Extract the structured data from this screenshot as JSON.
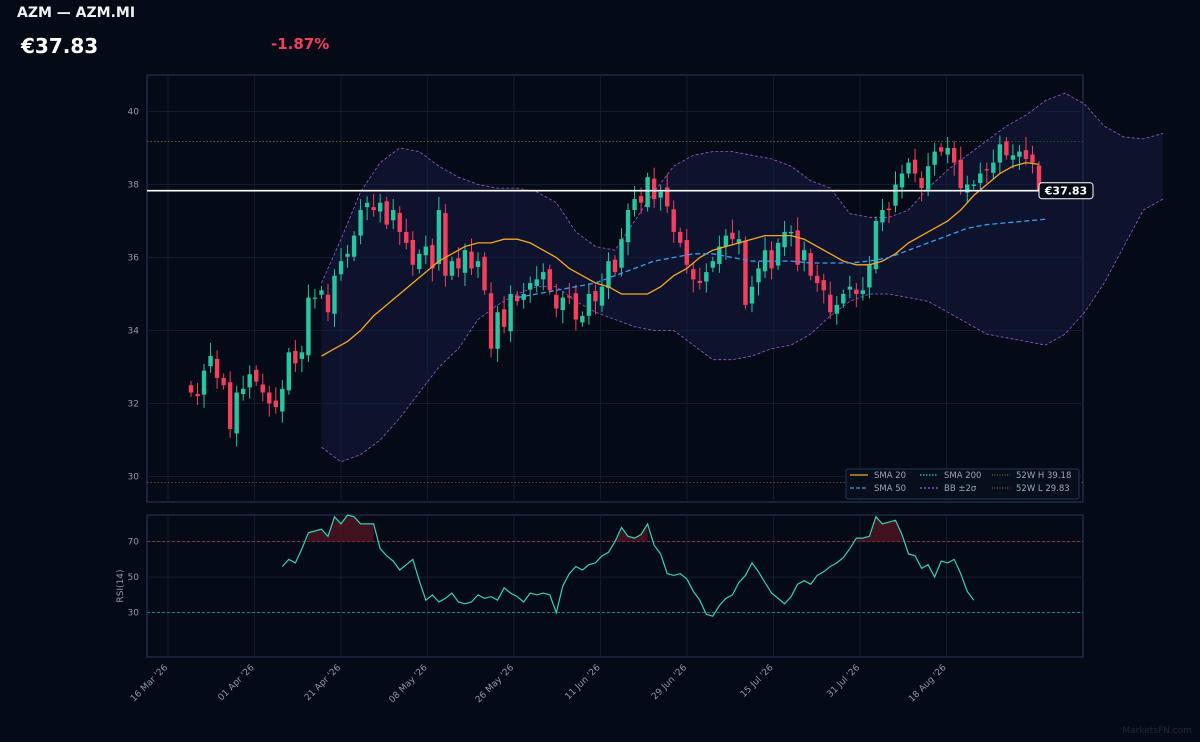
{
  "header": {
    "title": "AZM — AZM.MI",
    "price": "€37.83",
    "change": "-1.87%"
  },
  "watermark": "MarketsFN.com",
  "colors": {
    "background": "#050b16",
    "up": "#26c6a0",
    "down": "#f43f5e",
    "sma20": "#f5a623",
    "sma50": "#3b9cf0",
    "sma200": "#2dd4bf",
    "bollinger": "#9b59d0",
    "rsi": "#34d3b4",
    "price_line": "#ffffff"
  },
  "chart_data": [
    {
      "type": "candlestick",
      "title": "",
      "ylim": [
        29.3,
        41.0
      ],
      "yticks": [
        30,
        32,
        34,
        36,
        38,
        40
      ],
      "xtick_labels": [
        "16 Mar '26",
        "01 Apr '26",
        "21 Apr '26",
        "08 May '26",
        "26 May '26",
        "11 Jun '26",
        "29 Jun '26",
        "15 Jul '26",
        "31 Jul '26",
        "18 Aug '26"
      ],
      "current_price": 37.83,
      "current_price_label": "€37.83",
      "week52_high": 39.18,
      "week52_low": 29.83,
      "grid": true,
      "legend_position": "bottom-right",
      "legend": [
        "SMA 20",
        "SMA 50",
        "SMA 200",
        "BB ±2σ",
        "52W H 39.18",
        "52W L 29.83"
      ],
      "close_series": [
        32.3,
        32.2,
        32.9,
        33.3,
        32.7,
        32.5,
        31.3,
        32.3,
        32.4,
        32.8,
        32.6,
        32.3,
        32.0,
        31.9,
        32.4,
        33.4,
        33.1,
        33.4,
        34.9,
        34.9,
        35.1,
        34.5,
        35.5,
        35.9,
        36.1,
        36.6,
        37.3,
        37.5,
        37.3,
        37.5,
        36.9,
        37.3,
        36.7,
        36.4,
        35.8,
        36.1,
        36.3,
        35.7,
        37.3,
        35.5,
        35.9,
        35.7,
        36.2,
        35.7,
        35.9,
        35.1,
        33.5,
        34.5,
        34.1,
        35.0,
        34.8,
        35.0,
        35.3,
        35.4,
        35.6,
        35.1,
        34.6,
        34.9,
        34.9,
        34.3,
        34.4,
        35.0,
        34.8,
        35.2,
        35.9,
        35.6,
        36.5,
        37.3,
        37.6,
        37.5,
        38.2,
        37.6,
        37.8,
        37.4,
        36.7,
        36.4,
        35.8,
        35.4,
        35.3,
        35.6,
        35.9,
        36.3,
        36.6,
        36.5,
        36.5,
        34.7,
        35.2,
        35.7,
        36.2,
        35.7,
        36.4,
        36.7,
        36.7,
        35.8,
        36.2,
        35.5,
        35.3,
        35.1,
        34.5,
        34.7,
        35.0,
        35.2,
        35.0,
        35.1,
        35.8,
        37.0,
        37.3,
        37.3,
        38.0,
        38.3,
        38.6,
        38.3,
        37.9,
        38.5,
        38.9,
        38.9,
        39.0,
        38.6,
        37.9,
        38.0,
        38.0,
        38.3,
        38.4,
        38.6,
        39.1,
        38.8,
        38.8,
        38.9,
        38.7,
        38.6,
        37.83
      ],
      "sma20": {
        "from_index": 20,
        "values": [
          33.3,
          33.5,
          33.7,
          34.0,
          34.4,
          34.7,
          35.0,
          35.3,
          35.6,
          35.9,
          36.1,
          36.3,
          36.4,
          36.4,
          36.5,
          36.5,
          36.4,
          36.2,
          36.0,
          35.7,
          35.5,
          35.3,
          35.2,
          35.0,
          35.0,
          35.0,
          35.2,
          35.5,
          35.7,
          36.0,
          36.2,
          36.3,
          36.4,
          36.5,
          36.6,
          36.6,
          36.6,
          36.5,
          36.3,
          36.1,
          35.9,
          35.8,
          35.8,
          35.9,
          36.1,
          36.4,
          36.6,
          36.8,
          37.0,
          37.3,
          37.7,
          38.0,
          38.3,
          38.5,
          38.6,
          38.55
        ]
      },
      "sma50": {
        "from_index": 50,
        "values": [
          34.9,
          35.0,
          35.1,
          35.2,
          35.3,
          35.5,
          35.7,
          35.9,
          36.0,
          36.1,
          36.1,
          36.0,
          35.9,
          35.9,
          35.9,
          35.85,
          35.85,
          35.85,
          35.9,
          36.0,
          36.2,
          36.4,
          36.6,
          36.8,
          36.9,
          36.95,
          37.0,
          37.05
        ]
      },
      "bb_upper": {
        "from_index": 20,
        "values": [
          35.3,
          36.5,
          37.8,
          38.6,
          39.0,
          38.9,
          38.5,
          38.2,
          38.0,
          37.9,
          37.9,
          37.8,
          37.5,
          36.7,
          36.3,
          36.2,
          37.0,
          37.8,
          38.5,
          38.8,
          38.9,
          38.9,
          38.8,
          38.7,
          38.5,
          38.1,
          37.9,
          37.2,
          37.1,
          37.1,
          37.3,
          37.9,
          38.4,
          38.8,
          39.2,
          39.6,
          39.9,
          40.3,
          40.5,
          40.2,
          39.6,
          39.3,
          39.25,
          39.4
        ]
      },
      "bb_lower": {
        "from_index": 20,
        "values": [
          30.8,
          30.4,
          30.6,
          31.0,
          31.6,
          32.3,
          33.0,
          33.5,
          34.3,
          34.7,
          35.0,
          35.2,
          35.2,
          34.8,
          34.5,
          34.3,
          34.1,
          34.0,
          34.0,
          33.6,
          33.2,
          33.2,
          33.3,
          33.5,
          33.6,
          33.9,
          34.4,
          34.8,
          35.0,
          35.0,
          34.9,
          34.8,
          34.5,
          34.2,
          33.9,
          33.8,
          33.7,
          33.6,
          33.9,
          34.5,
          35.3,
          36.3,
          37.3,
          37.6
        ]
      }
    },
    {
      "type": "line",
      "ylabel": "RSI(14)",
      "ylim": [
        5,
        85
      ],
      "yticks": [
        30,
        50,
        70
      ],
      "overbought": 70,
      "oversold": 30,
      "from_index": 14,
      "values": [
        56,
        60,
        58,
        66,
        75,
        76,
        77,
        73,
        84,
        80,
        85,
        84,
        80,
        80,
        80,
        66,
        62,
        59,
        54,
        57,
        60,
        48,
        37,
        40,
        36,
        38,
        41,
        36,
        35,
        36,
        40,
        38,
        39,
        37,
        44,
        41,
        39,
        36,
        41,
        40,
        41,
        40,
        30,
        45,
        52,
        56,
        54,
        57,
        58,
        62,
        64,
        70,
        78,
        73,
        72,
        74,
        80,
        68,
        63,
        52,
        51,
        52,
        49,
        42,
        37,
        29,
        28,
        34,
        38,
        40,
        47,
        51,
        58,
        53,
        47,
        41,
        38,
        35,
        39,
        46,
        48,
        46,
        51,
        53,
        56,
        58,
        61,
        66,
        72,
        72,
        73,
        84,
        80,
        81,
        82,
        74,
        63,
        62,
        55,
        57,
        50,
        59,
        58,
        60,
        52,
        42,
        37
      ]
    }
  ]
}
